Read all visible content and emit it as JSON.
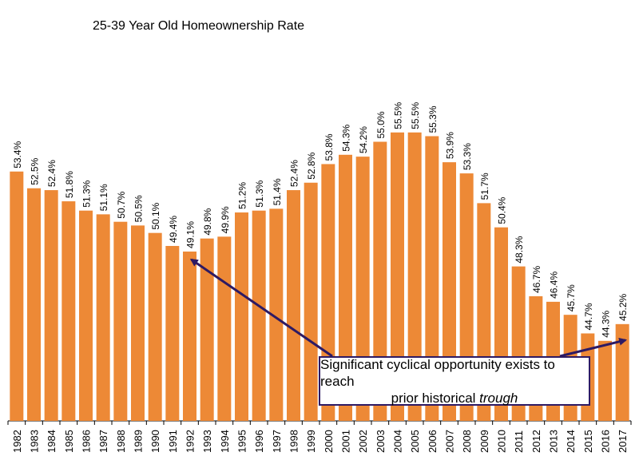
{
  "chart_data": {
    "type": "bar",
    "title": "25-39 Year Old Homeownership Rate",
    "xlabel": "",
    "ylabel": "",
    "ylim": [
      40,
      57
    ],
    "bar_color": "#ed8936",
    "categories": [
      "1982",
      "1983",
      "1984",
      "1985",
      "1986",
      "1987",
      "1988",
      "1989",
      "1990",
      "1991",
      "1992",
      "1993",
      "1994",
      "1995",
      "1996",
      "1997",
      "1998",
      "1999",
      "2000",
      "2001",
      "2002",
      "2003",
      "2004",
      "2005",
      "2006",
      "2007",
      "2008",
      "2009",
      "2010",
      "2011",
      "2012",
      "2013",
      "2014",
      "2015",
      "2016",
      "2017"
    ],
    "values": [
      53.4,
      52.5,
      52.4,
      51.8,
      51.3,
      51.1,
      50.7,
      50.5,
      50.1,
      49.4,
      49.1,
      49.8,
      49.9,
      51.2,
      51.3,
      51.4,
      52.4,
      52.8,
      53.8,
      54.3,
      54.2,
      55.0,
      55.5,
      55.5,
      55.3,
      53.9,
      53.3,
      51.7,
      50.4,
      48.3,
      46.7,
      46.4,
      45.7,
      44.7,
      44.3,
      45.2
    ],
    "data_labels": [
      "53.4%",
      "52.5%",
      "52.4%",
      "51.8%",
      "51.3%",
      "51.1%",
      "50.7%",
      "50.5%",
      "50.1%",
      "49.4%",
      "49.1%",
      "49.8%",
      "49.9%",
      "51.2%",
      "51.3%",
      "51.4%",
      "52.4%",
      "52.8%",
      "53.8%",
      "54.3%",
      "54.2%",
      "55.0%",
      "55.5%",
      "55.5%",
      "55.3%",
      "53.9%",
      "53.3%",
      "51.7%",
      "50.4%",
      "48.3%",
      "46.7%",
      "46.4%",
      "45.7%",
      "44.7%",
      "44.3%",
      "45.2%"
    ],
    "annotation": {
      "line1": "Significant cyclical opportunity exists to reach",
      "line2_prefix": "prior historical ",
      "line2_emphasis": "trough",
      "arrow_color": "#2e1a63",
      "arrow_targets": [
        "1992",
        "2017"
      ]
    }
  }
}
